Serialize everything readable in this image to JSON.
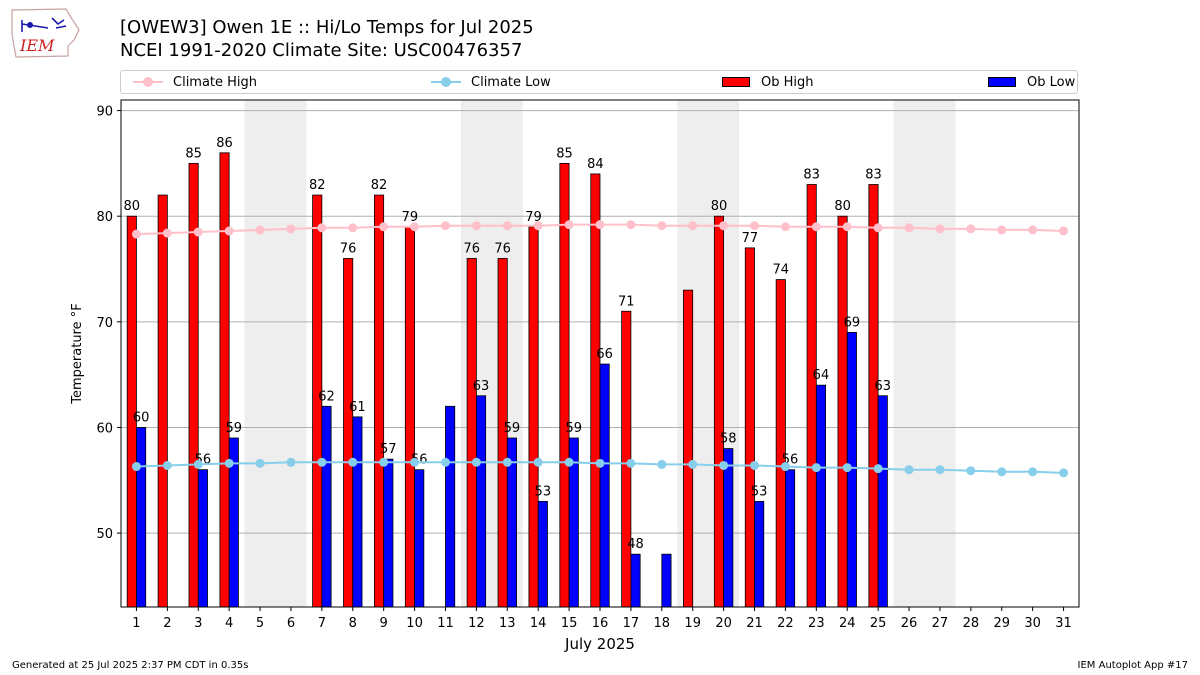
{
  "logo": {
    "text": "IEM"
  },
  "header": {
    "title_line1": "[OWEW3] Owen 1E :: Hi/Lo Temps for Jul 2025",
    "title_line2": "NCEI 1991-2020 Climate Site: USC00476357"
  },
  "legend": {
    "climate_high": "Climate High",
    "climate_low": "Climate Low",
    "ob_high": "Ob High",
    "ob_low": "Ob Low"
  },
  "colors": {
    "climate_high": "#ffc0cb",
    "climate_low": "#87ceeb",
    "ob_high": "#ff0000",
    "ob_low": "#0000ff",
    "weekend_shade": "#eeeeee",
    "grid": "#b0b0b0"
  },
  "chart_data": {
    "type": "bar",
    "xlabel": "July 2025",
    "ylabel": "Temperature °F",
    "xlim": [
      0.5,
      31.5
    ],
    "ylim": [
      43,
      91
    ],
    "yticks": [
      50,
      60,
      70,
      80,
      90
    ],
    "x": [
      1,
      2,
      3,
      4,
      5,
      6,
      7,
      8,
      9,
      10,
      11,
      12,
      13,
      14,
      15,
      16,
      17,
      18,
      19,
      20,
      21,
      22,
      23,
      24,
      25,
      26,
      27,
      28,
      29,
      30,
      31
    ],
    "shaded_days": [
      [
        5,
        6
      ],
      [
        12,
        13
      ],
      [
        19,
        20
      ],
      [
        26,
        27
      ]
    ],
    "grid": true,
    "legend_position": "top",
    "series": [
      {
        "name": "Ob High",
        "kind": "bar",
        "values": [
          80,
          82,
          85,
          86,
          null,
          null,
          82,
          76,
          82,
          79,
          null,
          76,
          76,
          79,
          85,
          84,
          71,
          null,
          73,
          80,
          77,
          74,
          83,
          80,
          83,
          null,
          null,
          null,
          null,
          null,
          null
        ],
        "labels": [
          "80",
          "",
          "85",
          "86",
          "",
          "",
          "82",
          "76",
          "82",
          "79",
          "",
          "76",
          "76",
          "79",
          "85",
          "84",
          "71",
          "",
          "",
          "80",
          "77",
          "74",
          "83",
          "80",
          "83",
          "",
          "",
          "",
          "",
          "",
          ""
        ]
      },
      {
        "name": "Ob Low",
        "kind": "bar",
        "values": [
          60,
          null,
          56,
          59,
          null,
          null,
          62,
          61,
          57,
          56,
          62,
          63,
          59,
          53,
          59,
          66,
          48,
          48,
          null,
          58,
          53,
          56,
          64,
          69,
          63,
          null,
          null,
          null,
          null,
          null,
          null
        ],
        "labels": [
          "60",
          "",
          "56",
          "59",
          "",
          "",
          "62",
          "61",
          "57",
          "56",
          "",
          "63",
          "59",
          "53",
          "59",
          "66",
          "48",
          "",
          "",
          "58",
          "53",
          "56",
          "64",
          "69",
          "63",
          "",
          "",
          "",
          "",
          "",
          ""
        ]
      },
      {
        "name": "Climate High",
        "kind": "line",
        "values": [
          78.3,
          78.4,
          78.5,
          78.6,
          78.7,
          78.8,
          78.9,
          78.9,
          79.0,
          79.0,
          79.1,
          79.1,
          79.1,
          79.1,
          79.2,
          79.2,
          79.2,
          79.1,
          79.1,
          79.1,
          79.1,
          79.0,
          79.0,
          79.0,
          78.9,
          78.9,
          78.8,
          78.8,
          78.7,
          78.7,
          78.6
        ]
      },
      {
        "name": "Climate Low",
        "kind": "line",
        "values": [
          56.3,
          56.4,
          56.5,
          56.6,
          56.6,
          56.7,
          56.7,
          56.7,
          56.7,
          56.7,
          56.7,
          56.7,
          56.7,
          56.7,
          56.7,
          56.6,
          56.6,
          56.5,
          56.5,
          56.4,
          56.4,
          56.3,
          56.2,
          56.2,
          56.1,
          56.0,
          56.0,
          55.9,
          55.8,
          55.8,
          55.7
        ]
      }
    ]
  },
  "footer": {
    "left": "Generated at 25 Jul 2025 2:37 PM CDT in 0.35s",
    "right": "IEM Autoplot App #17"
  }
}
